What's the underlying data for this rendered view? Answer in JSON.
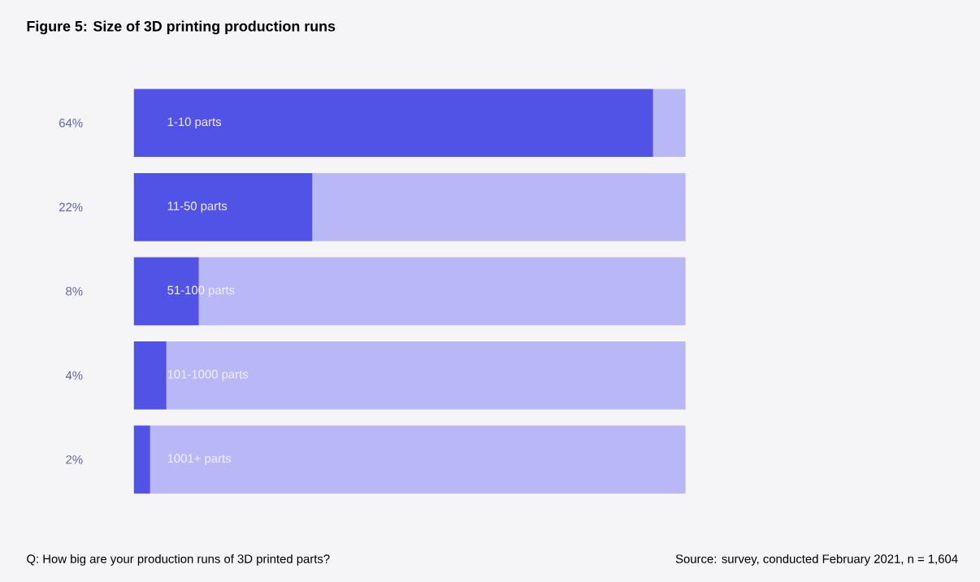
{
  "chart_data": {
    "type": "bar",
    "orientation": "horizontal",
    "stacked": true,
    "title": "Figure 5: Size of 3D printing production runs",
    "categories": [
      "1-10 parts",
      "11-50 parts",
      "51-100 parts",
      "101-1000 parts",
      "1001+ parts"
    ],
    "series": [
      {
        "color": "#5053e6",
        "values": [
          64,
          22,
          8,
          4,
          2
        ],
        "value_labels": [
          "64%",
          "22%",
          "8%",
          "4%",
          "2%"
        ]
      },
      {
        "color": "#b9b8f7",
        "values": [
          4,
          46,
          60,
          64,
          66
        ]
      }
    ],
    "annotations": [
      "Q: How big are your production runs of 3D printed parts?",
      "Source: survey, conducted February 2021, n = 1,604"
    ]
  }
}
